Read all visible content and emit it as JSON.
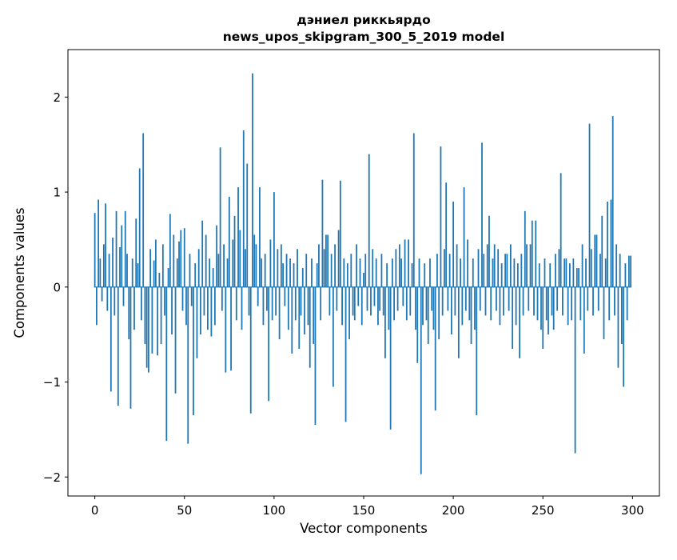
{
  "figure": {
    "title_line1": "дэниел риккьярдо",
    "title_line2": "news_upos_skipgram_300_5_2019 model",
    "xlabel": "Vector components",
    "ylabel": "Components values"
  },
  "chart_data": {
    "type": "bar",
    "title": "дэниел риккьярдо\nnews_upos_skipgram_300_5_2019 model",
    "xlabel": "Vector components",
    "ylabel": "Components values",
    "xlim": [
      -15,
      315
    ],
    "ylim": [
      -2.2,
      2.5
    ],
    "x_ticks": [
      0,
      50,
      100,
      150,
      200,
      250,
      300
    ],
    "y_ticks": [
      -2,
      -1,
      0,
      1,
      2
    ],
    "grid": false,
    "legend": false,
    "bar_color": "#1f77b4",
    "x_start": 0,
    "values": [
      0.78,
      -0.4,
      0.92,
      0.3,
      -0.15,
      0.45,
      0.88,
      -0.25,
      0.35,
      -1.1,
      0.52,
      -0.3,
      0.8,
      -1.25,
      0.42,
      0.65,
      -0.2,
      0.8,
      0.35,
      -0.55,
      -1.28,
      0.3,
      -0.45,
      0.72,
      0.25,
      1.25,
      -0.35,
      1.62,
      -0.6,
      -0.85,
      -0.9,
      0.4,
      -0.7,
      0.28,
      0.5,
      -0.72,
      0.15,
      -0.6,
      0.45,
      -0.3,
      -1.62,
      0.2,
      0.77,
      -0.5,
      0.55,
      -1.12,
      0.3,
      0.48,
      0.6,
      -0.25,
      0.62,
      -0.4,
      -1.65,
      0.35,
      -0.2,
      -1.35,
      0.25,
      -0.75,
      0.4,
      -0.5,
      0.7,
      -0.3,
      0.55,
      -0.45,
      0.3,
      -0.52,
      0.2,
      -0.4,
      0.65,
      0.35,
      1.47,
      -0.25,
      0.45,
      -0.9,
      0.3,
      0.95,
      -0.88,
      0.5,
      0.75,
      -0.35,
      1.05,
      0.6,
      -0.45,
      1.65,
      0.4,
      1.3,
      -0.3,
      -1.33,
      2.25,
      0.55,
      0.45,
      -0.2,
      1.05,
      0.3,
      -0.4,
      0.35,
      -0.25,
      -1.2,
      0.5,
      -0.35,
      1.0,
      -0.3,
      0.4,
      -0.55,
      0.45,
      0.25,
      -0.2,
      0.35,
      -0.45,
      0.3,
      -0.7,
      0.25,
      -0.35,
      0.4,
      -0.65,
      -0.3,
      0.2,
      -0.5,
      0.35,
      -0.4,
      -0.85,
      0.3,
      -0.6,
      -1.45,
      0.25,
      0.45,
      -0.35,
      1.13,
      0.4,
      0.55,
      0.55,
      -0.3,
      0.35,
      -1.05,
      0.45,
      -0.25,
      0.6,
      1.12,
      -0.4,
      0.3,
      -1.42,
      0.25,
      -0.55,
      0.35,
      -0.3,
      -0.35,
      0.45,
      -0.2,
      0.3,
      -0.4,
      0.15,
      0.35,
      -0.25,
      1.4,
      -0.3,
      0.4,
      -0.2,
      0.3,
      -0.4,
      -0.25,
      0.35,
      -0.3,
      -0.75,
      0.25,
      -0.45,
      -1.5,
      0.3,
      -0.35,
      0.4,
      -0.25,
      0.45,
      0.3,
      -0.2,
      0.5,
      -0.35,
      0.5,
      -0.3,
      0.25,
      1.62,
      -0.45,
      -0.8,
      0.3,
      -1.97,
      -0.4,
      0.25,
      -0.35,
      -0.6,
      0.3,
      -0.25,
      -0.45,
      -1.3,
      0.35,
      -0.55,
      1.48,
      -0.3,
      0.4,
      1.1,
      -0.25,
      0.35,
      -0.5,
      0.9,
      -0.3,
      0.45,
      -0.75,
      0.3,
      -0.4,
      1.05,
      -0.25,
      0.5,
      -0.35,
      -0.6,
      0.3,
      -0.45,
      -1.35,
      0.4,
      -0.25,
      1.52,
      0.35,
      -0.3,
      0.45,
      0.75,
      -0.35,
      0.3,
      0.45,
      -0.25,
      0.4,
      -0.4,
      0.25,
      -0.3,
      0.35,
      0.35,
      -0.25,
      0.45,
      -0.65,
      0.3,
      -0.4,
      0.25,
      -0.75,
      0.35,
      -0.3,
      0.8,
      0.45,
      -0.25,
      0.45,
      0.7,
      -0.3,
      0.7,
      -0.35,
      0.25,
      -0.45,
      -0.65,
      0.3,
      -0.35,
      -0.5,
      0.25,
      -0.3,
      -0.45,
      0.35,
      -0.25,
      0.4,
      1.2,
      -0.3,
      0.3,
      0.3,
      -0.4,
      0.25,
      -0.35,
      0.3,
      -1.75,
      0.2,
      0.2,
      -0.35,
      0.45,
      -0.7,
      0.3,
      -0.25,
      1.72,
      0.4,
      -0.3,
      0.55,
      0.55,
      -0.25,
      0.35,
      0.75,
      -0.55,
      0.3,
      0.9,
      -0.35,
      0.92,
      1.8,
      -0.3,
      0.45,
      -0.85,
      0.35,
      -0.6,
      -1.05,
      0.25,
      -0.35,
      0.33,
      0.33
    ]
  }
}
